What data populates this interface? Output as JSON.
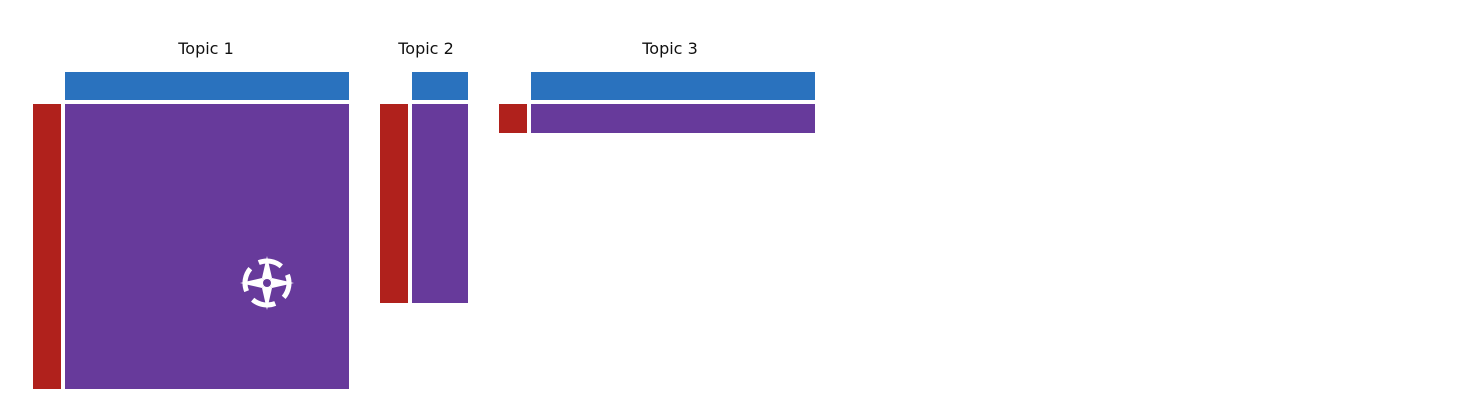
{
  "colors": {
    "column_bar": "#2a72be",
    "row_bar": "#b0211c",
    "cell": "#673a9b",
    "icon": "#ffffff",
    "title_text": "#111111",
    "background": "#ffffff"
  },
  "topics": [
    {
      "title": "Topic 1"
    },
    {
      "title": "Topic 2"
    },
    {
      "title": "Topic 3"
    }
  ],
  "icons": {
    "compass": "compass-icon"
  }
}
